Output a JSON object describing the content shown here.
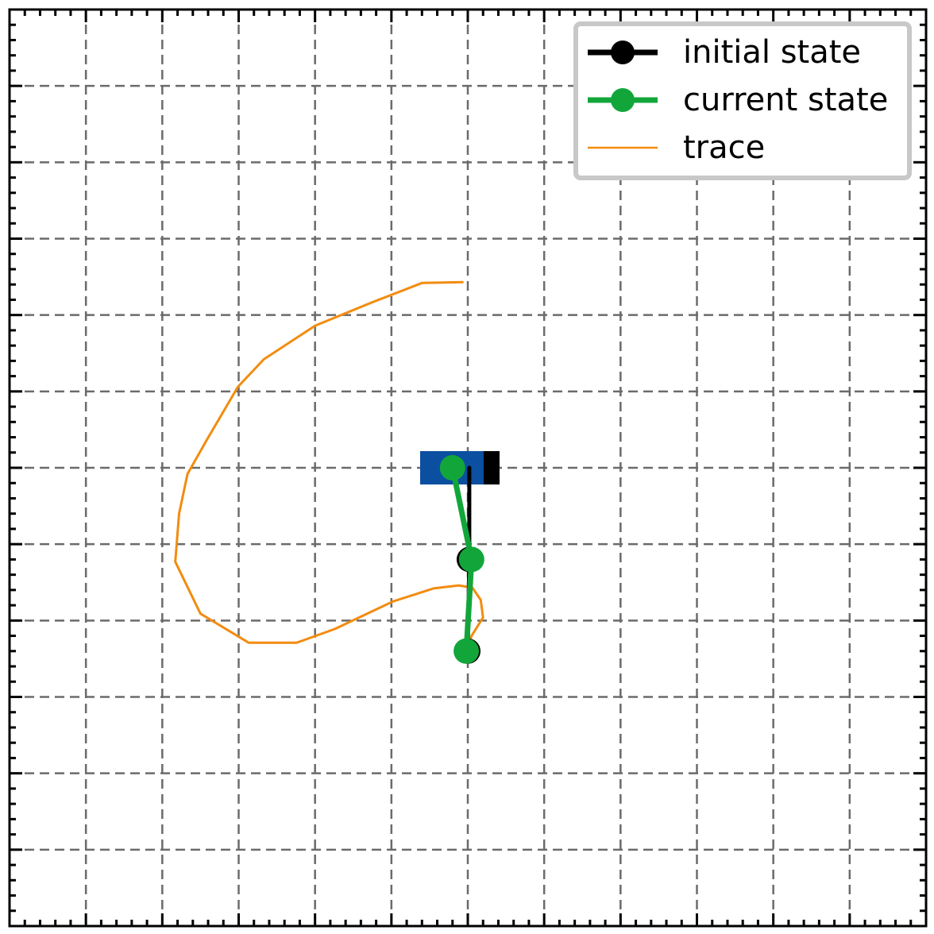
{
  "chart_data": {
    "type": "line",
    "title": "",
    "xlabel": "",
    "ylabel": "",
    "xlim": [
      -6,
      6
    ],
    "ylim": [
      -6,
      6
    ],
    "grid": true,
    "legend_position": "top-right",
    "tick_labels": false,
    "cart": {
      "x_center": 0,
      "y": 0,
      "colors": {
        "body": "#0b4fa0",
        "wheel": "#000000"
      }
    },
    "series": [
      {
        "name": "initial state",
        "color": "#000000",
        "style": "line-markers",
        "x": [
          0.02,
          0.02,
          0.0
        ],
        "y": [
          0.0,
          -1.2,
          -2.4
        ]
      },
      {
        "name": "current state",
        "color": "#12a63a",
        "style": "line-markers",
        "x": [
          -0.2,
          0.05,
          -0.02
        ],
        "y": [
          0.0,
          -1.2,
          -2.4
        ]
      },
      {
        "name": "trace",
        "color": "#f28c10",
        "style": "line",
        "x": [
          -0.02,
          0.05,
          0.2,
          0.17,
          0.06,
          -0.12,
          -0.45,
          -0.98,
          -1.74,
          -2.24,
          -2.87,
          -3.5,
          -3.83,
          -3.78,
          -3.67,
          -3.42,
          -3.01,
          -2.67,
          -2.0,
          -1.27,
          -0.6,
          -0.07,
          -0.09
        ],
        "y": [
          -2.4,
          -2.2,
          -1.96,
          -1.73,
          -1.57,
          -1.54,
          -1.58,
          -1.75,
          -2.11,
          -2.29,
          -2.29,
          -1.91,
          -1.23,
          -0.6,
          -0.08,
          0.36,
          1.06,
          1.42,
          1.86,
          2.16,
          2.42,
          2.43,
          2.43
        ]
      }
    ]
  }
}
